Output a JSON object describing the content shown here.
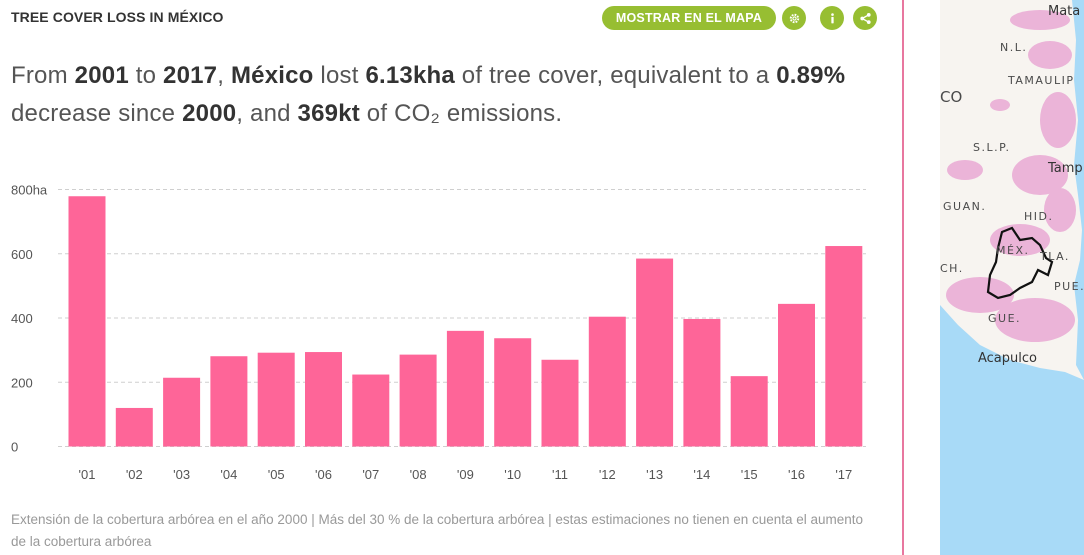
{
  "header": {
    "title": "TREE COVER LOSS IN MÉXICO",
    "map_button_label": "MOSTRAR EN EL MAPA",
    "settings_icon": "gear-icon",
    "info_icon": "info-icon",
    "share_icon": "share-icon",
    "accent_color": "#97be32"
  },
  "sentence": {
    "p1": "From ",
    "start_year": "2001",
    "p2": " to ",
    "end_year": "2017",
    "p3": ", ",
    "region": "México",
    "p4": " lost ",
    "loss": "6.13kha",
    "p5": " of tree cover, equivalent to a ",
    "percent": "0.89%",
    "p6": " decrease since ",
    "base_year": "2000",
    "p7": ", and ",
    "emissions": "369kt",
    "p8": " of CO₂ emissions."
  },
  "chart_data": {
    "type": "bar",
    "categories": [
      "'01",
      "'02",
      "'03",
      "'04",
      "'05",
      "'06",
      "'07",
      "'08",
      "'09",
      "'10",
      "'11",
      "'12",
      "'13",
      "'14",
      "'15",
      "'16",
      "'17"
    ],
    "values": [
      779,
      120,
      214,
      281,
      292,
      294,
      224,
      286,
      360,
      337,
      270,
      404,
      585,
      397,
      219,
      444,
      624
    ],
    "y_ticks": [
      "0",
      "200",
      "400",
      "600",
      "800ha"
    ],
    "ylim": [
      0,
      800
    ],
    "grid": true,
    "bar_color": "#fe6598"
  },
  "footnote": "Extensión de la cobertura arbórea en el año 2000 | Más del 30 % de la cobertura arbórea | estas estimaciones no tienen en cuenta el aumento de la cobertura arbórea",
  "map": {
    "labels": {
      "matamoros": "Mata",
      "nl": "N.L.",
      "tamaulipas": "TAMAULIP",
      "co": "CO",
      "slp": "S.L.P.",
      "tampico": "Tamp",
      "guan": "GUAN.",
      "hid": "HID.",
      "mex": "MÉX.",
      "tla": "TLA.",
      "ch": "CH.",
      "pue": "PUE.",
      "gue": "GUE.",
      "acapulco": "Acapulco"
    },
    "water_color": "#a8daf7",
    "land_color": "#f7f4f0",
    "loss_color": "#e9a9d4"
  }
}
